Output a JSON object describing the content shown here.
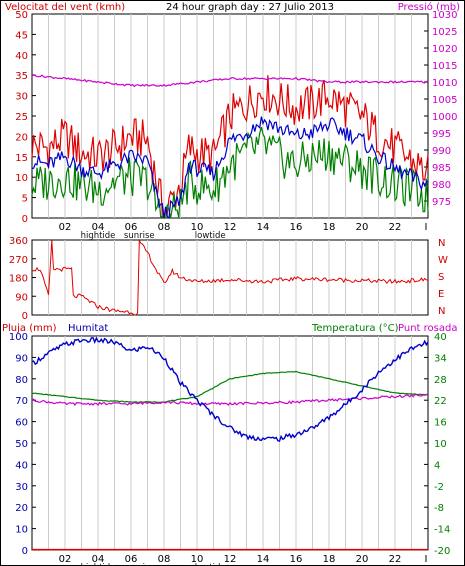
{
  "colors": {
    "frame": "#000000",
    "grid": "#cccccc",
    "wind": "#e00000",
    "wind_avg": "#0000cc",
    "gust_min": "#008000",
    "pressure": "#cc00cc",
    "humidity": "#0000cc",
    "temperature": "#008000",
    "dewpoint": "#cc00cc",
    "rain": "#e00000",
    "label_red": "#cc0000",
    "label_magenta": "#cc00cc",
    "label_blue": "#0000aa",
    "label_green": "#008000"
  },
  "labels": {
    "wind_speed": "Velocitat del vent (kmh)",
    "title": "24 hour graph day : 27 Julio 2013",
    "pressure": "Pressió (mb)",
    "rain": "Pluja (mm)",
    "humidity": "Humitat",
    "temperature": "Temperatura (°C)",
    "dewpoint": "Punt rosada"
  },
  "direction_labels": [
    "N",
    "W",
    "S",
    "E",
    "N"
  ],
  "x_ticks": [
    "02",
    "04",
    "06",
    "08",
    "10",
    "12",
    "14",
    "16",
    "18",
    "20",
    "22",
    "I"
  ],
  "event_marks": [
    {
      "text": "hightide",
      "hour": 4
    },
    {
      "text": "sunrise",
      "hour": 6.5
    },
    {
      "text": "lowtide",
      "hour": 10.8
    }
  ],
  "chart_data": [
    {
      "type": "line",
      "name": "wind",
      "title": "24 hour graph day : 27 Julio 2013",
      "ylabel": "Velocitat del vent (kmh)",
      "y2label": "Pressió (mb)",
      "ylim": [
        0,
        50
      ],
      "y2lim": [
        970,
        1030
      ],
      "yticks": [
        0,
        5,
        10,
        15,
        20,
        25,
        30,
        35,
        40,
        45,
        50
      ],
      "y2ticks": [
        975,
        980,
        985,
        990,
        995,
        1000,
        1005,
        1010,
        1015,
        1020,
        1025,
        1030
      ],
      "xlim": [
        0,
        24
      ],
      "series": [
        {
          "x": [
            0,
            1,
            2,
            3,
            4,
            5,
            6,
            7,
            7.5,
            8,
            9,
            9.5,
            10,
            11,
            12,
            13,
            14,
            15,
            16,
            17,
            18,
            19,
            20,
            21,
            22,
            23,
            24
          ],
          "values": [
            18,
            17,
            20,
            16,
            15,
            17,
            20,
            19,
            10,
            1,
            8,
            17,
            16,
            15,
            25,
            28,
            31,
            29,
            27,
            28,
            30,
            27,
            25,
            20,
            17,
            14,
            11
          ]
        },
        {
          "x": [
            0,
            1,
            2,
            3,
            4,
            5,
            6,
            7,
            7.5,
            8,
            9,
            9.5,
            10,
            11,
            12,
            13,
            14,
            15,
            16,
            17,
            18,
            19,
            20,
            21,
            22,
            23,
            24
          ],
          "values": [
            14,
            13,
            15,
            12,
            11,
            13,
            15,
            14,
            6,
            1,
            4,
            13,
            12,
            11,
            19,
            21,
            24,
            22,
            20,
            21,
            23,
            21,
            19,
            15,
            12,
            10,
            8
          ]
        },
        {
          "x": [
            0,
            1,
            2,
            3,
            4,
            5,
            6,
            7,
            7.5,
            8,
            9,
            9.5,
            10,
            11,
            12,
            13,
            14,
            15,
            16,
            17,
            18,
            19,
            20,
            21,
            22,
            23,
            24
          ],
          "values": [
            8,
            9,
            10,
            8,
            7,
            9,
            10,
            9,
            3,
            0,
            3,
            9,
            8,
            7,
            13,
            16,
            18,
            15,
            13,
            15,
            16,
            14,
            12,
            10,
            8,
            7,
            5
          ]
        },
        {
          "x": [
            0,
            2,
            4,
            6,
            8,
            10,
            12,
            14,
            16,
            18,
            20,
            22,
            24
          ],
          "values": [
            1012,
            1011,
            1010,
            1009,
            1009,
            1010,
            1011,
            1011,
            1011,
            1010,
            1010,
            1010,
            1010
          ]
        }
      ]
    },
    {
      "type": "line",
      "name": "wind-direction",
      "ylim": [
        0,
        360
      ],
      "yticks": [
        0,
        90,
        180,
        270,
        360
      ],
      "xlim": [
        0,
        24
      ],
      "series": [
        {
          "x": [
            0,
            0.5,
            1,
            1.2,
            1.3,
            1.5,
            2,
            2.4,
            2.5,
            3,
            4,
            5,
            6,
            6.4,
            6.5,
            7,
            7.5,
            8,
            8.5,
            9,
            10,
            12,
            14,
            16,
            18,
            20,
            22,
            23,
            24
          ],
          "values": [
            220,
            220,
            90,
            350,
            220,
            220,
            220,
            220,
            90,
            90,
            40,
            20,
            15,
            5,
            350,
            300,
            220,
            150,
            210,
            180,
            160,
            170,
            160,
            175,
            170,
            165,
            160,
            165,
            170
          ]
        }
      ]
    },
    {
      "type": "line",
      "name": "humidity-temperature",
      "ylabel": "Pluja (mm)",
      "y2label": "Temperatura (°C)",
      "ylim": [
        0,
        100
      ],
      "y2lim": [
        -20,
        40
      ],
      "yticks": [
        0,
        10,
        20,
        30,
        40,
        50,
        60,
        70,
        80,
        90,
        100
      ],
      "y2ticks": [
        -20,
        -14,
        -8,
        -2,
        4,
        10,
        16,
        22,
        28,
        34,
        40
      ],
      "xlim": [
        0,
        24
      ],
      "series": [
        {
          "x": [
            0,
            1,
            2,
            3,
            4,
            5,
            6,
            7,
            8,
            9,
            10,
            11,
            12,
            13,
            14,
            15,
            16,
            17,
            18,
            19,
            20,
            21,
            22,
            23,
            24
          ],
          "values": [
            87,
            92,
            96,
            98,
            98,
            97,
            93,
            95,
            90,
            78,
            70,
            63,
            57,
            53,
            52,
            52,
            54,
            57,
            62,
            68,
            75,
            83,
            89,
            94,
            97
          ]
        },
        {
          "x": [
            0,
            2,
            4,
            6,
            8,
            10,
            12,
            14,
            16,
            18,
            20,
            22,
            24
          ],
          "values": [
            24,
            23,
            22,
            21.5,
            21.5,
            23,
            28,
            29.5,
            30,
            28,
            26,
            24,
            23.5
          ]
        },
        {
          "x": [
            0,
            2,
            4,
            6,
            8,
            10,
            12,
            14,
            16,
            18,
            20,
            22,
            24
          ],
          "values": [
            22,
            21,
            21,
            21,
            21.5,
            21,
            21,
            21.2,
            21.5,
            22,
            22.5,
            23,
            23.5
          ]
        },
        {
          "x": [
            0,
            24
          ],
          "values": [
            0.2,
            0.2
          ]
        }
      ]
    }
  ]
}
